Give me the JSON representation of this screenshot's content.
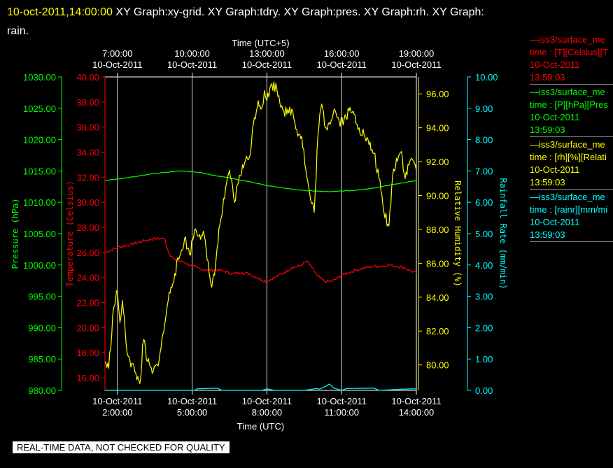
{
  "title": {
    "timestamp": "10-oct-2011,14:00:00",
    "text": "XY Graph:xy-grid.  XY Graph:tdry.  XY Graph:pres.  XY Graph:rh.  XY Graph:",
    "line2": "rain."
  },
  "banner": "REAL-TIME DATA, NOT CHECKED FOR QUALITY",
  "colors": {
    "temperature": "#ff0000",
    "pressure": "#00ff00",
    "humidity": "#ffff00",
    "rain": "#00ffff",
    "grid": "#ffffff"
  },
  "legend": [
    {
      "name": "—iss3/surface_me",
      "line1": "time : [T][Celsius][T",
      "date": "10-Oct-2011",
      "time": "13:59:03",
      "color": "#ff0000"
    },
    {
      "name": "—iss3/surface_me",
      "line1": "time : [P][hPa][Pres",
      "date": "10-Oct-2011",
      "time": "13:59:03",
      "color": "#00ff00"
    },
    {
      "name": "—iss3/surface_me",
      "line1": "time : [rh][%][Relati",
      "date": "10-Oct-2011",
      "time": "13:59:03",
      "color": "#ffff00"
    },
    {
      "name": "—iss3/surface_me",
      "line1": "time : [rainr][mm/mi",
      "date": "10-Oct-2011",
      "time": "13:59:03",
      "color": "#00ffff"
    }
  ],
  "chart_data": {
    "type": "line",
    "x_bottom": {
      "label": "Time (UTC)",
      "range_hours": [
        1.5,
        14.0
      ],
      "ticks": [
        {
          "h": 2,
          "date": "10-Oct-2011",
          "time": "2:00:00"
        },
        {
          "h": 5,
          "date": "10-Oct-2011",
          "time": "5:00:00"
        },
        {
          "h": 8,
          "date": "10-Oct-2011",
          "time": "8:00:00"
        },
        {
          "h": 11,
          "date": "10-Oct-2011",
          "time": "11:00:00"
        },
        {
          "h": 14,
          "date": "10-Oct-2011",
          "time": "14:00:00"
        }
      ]
    },
    "x_top": {
      "label": "Time (UTC+5)",
      "ticks": [
        {
          "h": 2,
          "date": "10-Oct-2011",
          "time": "7:00:00"
        },
        {
          "h": 5,
          "date": "10-Oct-2011",
          "time": "10:00:00"
        },
        {
          "h": 8,
          "date": "10-Oct-2011",
          "time": "13:00:00"
        },
        {
          "h": 11,
          "date": "10-Oct-2011",
          "time": "16:00:00"
        },
        {
          "h": 14,
          "date": "10-Oct-2011",
          "time": "19:00:00"
        }
      ]
    },
    "grid": true,
    "axes": {
      "pressure": {
        "label": "Pressure (hPa)",
        "range": [
          980,
          1030
        ],
        "ticks": [
          "980.00",
          "985.00",
          "990.00",
          "995.00",
          "1000.00",
          "1005.00",
          "1010.00",
          "1015.00",
          "1020.00",
          "1025.00",
          "1030.00"
        ]
      },
      "temperature": {
        "label": "Temperature (Celsius)",
        "range": [
          15,
          40
        ],
        "ticks": [
          "16.00",
          "18.00",
          "20.00",
          "22.00",
          "24.00",
          "26.00",
          "28.00",
          "30.00",
          "32.00",
          "34.00",
          "36.00",
          "38.00",
          "40.00"
        ]
      },
      "humidity": {
        "label": "Relative Humidity (%)",
        "range": [
          78.5,
          97
        ],
        "ticks": [
          "80.00",
          "82.00",
          "84.00",
          "86.00",
          "88.00",
          "90.00",
          "92.00",
          "94.00",
          "96.00"
        ]
      },
      "rain": {
        "label": "Rainfall Rate (mm/min)",
        "range": [
          0,
          10
        ],
        "ticks": [
          "0.00",
          "1.00",
          "2.00",
          "3.00",
          "4.00",
          "5.00",
          "6.00",
          "7.00",
          "8.00",
          "9.00",
          "10.00"
        ]
      }
    },
    "series": [
      {
        "name": "Temperature",
        "axis": "temperature",
        "x": [
          1.5,
          2.0,
          2.5,
          3.0,
          3.5,
          3.9,
          4.05,
          4.3,
          4.7,
          5.0,
          5.3,
          5.6,
          6.0,
          6.3,
          6.6,
          7.0,
          7.3,
          7.6,
          7.8,
          8.0,
          8.3,
          8.7,
          9.0,
          9.3,
          9.6,
          9.8,
          10.0,
          10.3,
          10.6,
          10.8,
          11.0,
          11.3,
          11.6,
          12.0,
          12.3,
          12.6,
          12.9,
          13.2,
          13.5,
          13.8,
          14.0
        ],
        "values": [
          26.0,
          26.4,
          26.6,
          26.9,
          27.1,
          27.1,
          26.0,
          25.4,
          25.2,
          24.9,
          24.7,
          24.6,
          24.6,
          24.5,
          24.3,
          24.4,
          24.3,
          24.0,
          23.8,
          23.7,
          24.0,
          24.4,
          24.8,
          24.9,
          25.3,
          24.8,
          24.2,
          23.7,
          23.7,
          23.9,
          24.2,
          24.4,
          24.6,
          24.8,
          24.9,
          24.9,
          25.0,
          24.9,
          24.8,
          24.5,
          24.4
        ]
      },
      {
        "name": "Pressure",
        "axis": "pressure",
        "x": [
          1.5,
          2.0,
          2.5,
          3.0,
          3.5,
          4.0,
          4.5,
          5.0,
          5.5,
          6.0,
          6.5,
          7.0,
          7.5,
          8.0,
          8.5,
          9.0,
          9.5,
          10.0,
          10.5,
          11.0,
          11.5,
          12.0,
          12.5,
          13.0,
          13.5,
          14.0
        ],
        "values": [
          1013.5,
          1013.7,
          1014.0,
          1014.3,
          1014.6,
          1014.8,
          1015.0,
          1014.9,
          1014.6,
          1014.2,
          1013.9,
          1013.5,
          1013.1,
          1012.7,
          1012.4,
          1012.1,
          1011.9,
          1011.8,
          1011.7,
          1011.8,
          1011.9,
          1012.1,
          1012.4,
          1012.8,
          1013.1,
          1013.5
        ]
      },
      {
        "name": "Relative Humidity",
        "axis": "humidity",
        "x": [
          1.5,
          1.65,
          1.85,
          2.0,
          2.1,
          2.2,
          2.35,
          2.5,
          2.7,
          2.9,
          3.05,
          3.2,
          3.4,
          3.6,
          3.75,
          3.9,
          4.0,
          4.15,
          4.3,
          4.5,
          4.7,
          4.9,
          5.1,
          5.3,
          5.45,
          5.6,
          5.75,
          5.9,
          6.0,
          6.15,
          6.3,
          6.5,
          6.7,
          6.9,
          7.1,
          7.3,
          7.5,
          7.65,
          7.8,
          7.9,
          8.0,
          8.2,
          8.4,
          8.6,
          8.8,
          9.0,
          9.2,
          9.4,
          9.6,
          9.75,
          9.9,
          10.05,
          10.2,
          10.35,
          10.5,
          10.7,
          10.9,
          11.1,
          11.3,
          11.5,
          11.7,
          11.9,
          12.1,
          12.3,
          12.5,
          12.7,
          12.9,
          13.05,
          13.2,
          13.4,
          13.55,
          13.7,
          13.8,
          13.9,
          14.0
        ],
        "values": [
          80.2,
          79.8,
          83.4,
          84.3,
          82.5,
          83.8,
          81.2,
          80.3,
          79.6,
          78.9,
          81.5,
          80.2,
          79.5,
          80.0,
          81.0,
          82.4,
          83.5,
          84.6,
          85.4,
          86.4,
          87.5,
          86.5,
          88.0,
          87.7,
          87.9,
          86.2,
          84.8,
          85.3,
          86.9,
          88.6,
          89.8,
          91.5,
          89.6,
          91.2,
          91.9,
          92.3,
          94.6,
          95.6,
          95.2,
          96.2,
          95.6,
          96.6,
          96.3,
          95.3,
          94.8,
          95.1,
          93.9,
          93.5,
          91.1,
          89.8,
          89.0,
          93.6,
          95.4,
          94.0,
          94.3,
          95.1,
          94.4,
          94.5,
          95.0,
          94.8,
          94.0,
          93.6,
          93.0,
          92.5,
          91.0,
          89.0,
          88.2,
          91.2,
          92.2,
          92.6,
          91.0,
          91.8,
          92.2,
          92.0,
          91.5
        ]
      },
      {
        "name": "Rainfall Rate",
        "axis": "rain",
        "x": [
          1.5,
          5.1,
          5.2,
          6.0,
          6.2,
          7.8,
          8.0,
          8.3,
          9.5,
          10.0,
          10.1,
          10.3,
          10.5,
          10.7,
          11.0,
          11.2,
          12.3,
          12.5,
          13.5,
          14.0
        ],
        "values": [
          0.0,
          0.0,
          0.05,
          0.07,
          0.0,
          0.0,
          0.05,
          0.0,
          0.0,
          0.06,
          0.04,
          0.1,
          0.2,
          0.07,
          0.0,
          0.06,
          0.07,
          0.0,
          0.04,
          0.05
        ]
      }
    ]
  }
}
